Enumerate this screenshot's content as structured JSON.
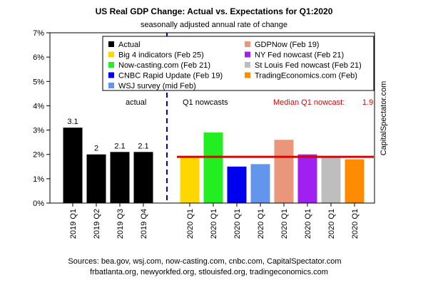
{
  "colors": {
    "median_line": "#e00000",
    "divider": "#0000cc"
  },
  "chart_data": {
    "type": "bar",
    "title": "US Real GDP Change: Actual vs. Expectations for Q1:2020",
    "subtitle": "seasonally adjusted annual rate of change",
    "ylim": [
      0,
      7
    ],
    "yticks": [
      "0%",
      "1%",
      "2%",
      "3%",
      "4%",
      "5%",
      "6%",
      "7%"
    ],
    "categories": [
      "2019 Q1",
      "2019 Q2",
      "2019 Q3",
      "2019 Q4",
      "2020 Q1",
      "2020 Q1",
      "2020 Q1",
      "2020 Q1",
      "2020 Q1",
      "2020 Q1",
      "2020 Q1",
      "2020 Q1"
    ],
    "values": [
      3.1,
      2.0,
      2.1,
      2.1,
      1.9,
      2.9,
      1.5,
      1.6,
      2.6,
      2.0,
      1.9,
      1.8
    ],
    "value_labels": [
      "3.1",
      "2",
      "2.1",
      "2.1",
      "",
      "",
      "",
      "",
      "",
      "",
      "",
      ""
    ],
    "bar_colors": [
      "#000000",
      "#000000",
      "#000000",
      "#000000",
      "#ffd700",
      "#22ee22",
      "#0000ee",
      "#6495ed",
      "#e9967a",
      "#a020f0",
      "#bebebe",
      "#ff8c00"
    ],
    "series_legend": [
      {
        "name": "Actual",
        "color": "#000000"
      },
      {
        "name": "Big 4 indicators (Feb 25)",
        "color": "#ffd700"
      },
      {
        "name": "Now-casting.com (Feb 21)",
        "color": "#22ee22"
      },
      {
        "name": "CNBC Rapid Update (Feb 19)",
        "color": "#0000ee"
      },
      {
        "name": "WSJ survey (mid Feb)",
        "color": "#6495ed"
      },
      {
        "name": "GDPNow (Feb 19)",
        "color": "#e9967a"
      },
      {
        "name": "NY Fed nowcast (Feb 21)",
        "color": "#a020f0"
      },
      {
        "name": "St Louis Fed nowcast (Feb 21)",
        "color": "#bebebe"
      },
      {
        "name": "TradingEconomics.com (Feb)",
        "color": "#ff8c00"
      }
    ],
    "legend_position": "top",
    "median_value": 1.9,
    "section_labels": {
      "actual": "actual",
      "nowcasts": "Q1 nowcasts"
    },
    "median_label": "Median Q1 nowcast:",
    "median_value_label": "1.9",
    "grid": false
  },
  "sources": {
    "line1": "Sources: bea.gov, wsj.com, now-casting.com, cnbc.com, CapitalSpectator.com",
    "line2": "frbatlanta.org, newyorkfed.org, stlouisfed.org, tradingeconomics.com"
  },
  "watermark": "CapitalSpectator.com"
}
